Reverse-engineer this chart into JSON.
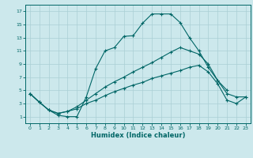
{
  "xlabel": "Humidex (Indice chaleur)",
  "xlim": [
    -0.5,
    23.5
  ],
  "ylim": [
    0,
    18
  ],
  "xticks": [
    0,
    1,
    2,
    3,
    4,
    5,
    6,
    7,
    8,
    9,
    10,
    11,
    12,
    13,
    14,
    15,
    16,
    17,
    18,
    19,
    20,
    21,
    22,
    23
  ],
  "yticks": [
    1,
    3,
    5,
    7,
    9,
    11,
    13,
    15,
    17
  ],
  "bg_color": "#cce8ec",
  "line_color": "#006666",
  "grid_color": "#aacfd4",
  "series": [
    {
      "x": [
        0,
        1,
        2,
        3,
        4,
        5,
        6,
        7,
        8,
        9,
        10,
        11,
        12,
        13,
        14,
        15,
        16,
        17,
        18,
        19,
        20,
        21
      ],
      "y": [
        4.5,
        3.2,
        2.0,
        1.2,
        1.0,
        1.0,
        4.0,
        8.3,
        11.0,
        11.5,
        13.2,
        13.3,
        15.2,
        16.6,
        16.6,
        16.6,
        15.3,
        13.0,
        11.0,
        8.5,
        6.5,
        5.0
      ]
    },
    {
      "x": [
        0,
        1,
        2,
        3,
        4,
        5,
        6,
        7,
        8,
        9,
        10,
        11,
        12,
        13,
        14,
        15,
        16,
        17,
        18,
        19,
        20,
        21,
        22,
        23
      ],
      "y": [
        4.5,
        3.2,
        2.0,
        1.5,
        1.8,
        2.5,
        3.5,
        4.5,
        5.5,
        6.3,
        7.0,
        7.8,
        8.5,
        9.2,
        10.0,
        10.8,
        11.5,
        11.0,
        10.5,
        9.0,
        6.5,
        4.5,
        4.0,
        4.0
      ]
    },
    {
      "x": [
        0,
        1,
        2,
        3,
        4,
        5,
        6,
        7,
        8,
        9,
        10,
        11,
        12,
        13,
        14,
        15,
        16,
        17,
        18,
        19,
        20,
        21,
        22,
        23
      ],
      "y": [
        4.5,
        3.2,
        2.0,
        1.5,
        1.8,
        2.2,
        3.0,
        3.5,
        4.2,
        4.8,
        5.3,
        5.8,
        6.2,
        6.8,
        7.2,
        7.6,
        8.0,
        8.5,
        8.8,
        7.8,
        6.0,
        3.5,
        3.0,
        4.0
      ]
    }
  ]
}
